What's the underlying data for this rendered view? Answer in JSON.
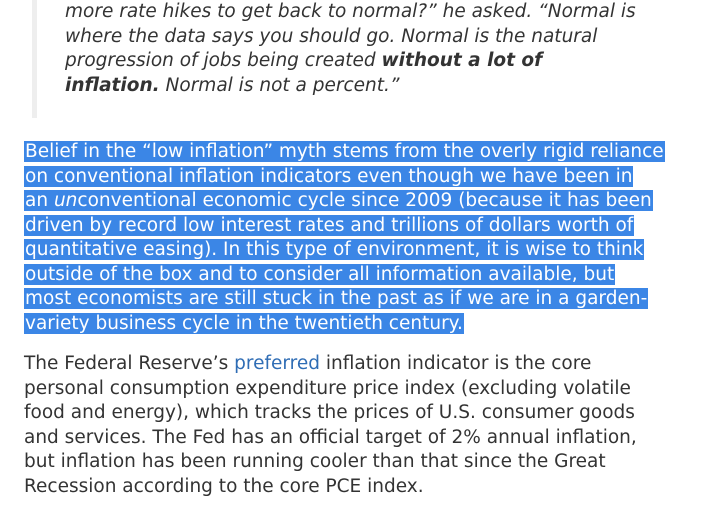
{
  "quote": {
    "line1": "more rate hikes to get back to normal?” he asked. “Normal is",
    "line2": "where the data says you should go. Normal is the natural",
    "line3_pre": "progression of jobs being created ",
    "line3_bold": "without a lot of",
    "line4_bold": "inflation.",
    "line4_post": " Normal is not a percent.”"
  },
  "selected_paragraph": {
    "lines": [
      "Belief in the “low inflation” myth stems from the overly rigid reliance",
      "on conventional inflation indicators even though we have been in",
      "conventional economic cycle since 2009 (because it has been",
      "driven by record low interest rates and trillions of dollars worth of",
      "quantitative easing). In this type of environment, it is wise to think",
      "outside of the box and to consider all information available, but",
      "most economists are still stuck in the past as if we are in a garden-",
      "variety business cycle in the twentieth century."
    ],
    "line3_prefix": "an ",
    "line3_italic": "un"
  },
  "body_paragraph": {
    "pre_link": "The Federal Reserve’s ",
    "link_text": "preferred",
    "post_link_lines": [
      " inflation indicator is the core",
      "personal consumption expenditure price index (excluding volatile",
      "food and energy), which tracks the prices of U.S. consumer goods",
      "and services. The Fed has an official target of 2% annual inflation,",
      "but inflation has been running cooler than that since the Great",
      "Recession according to the core PCE index."
    ]
  },
  "colors": {
    "selection": "#3b86e6",
    "link": "#2f6db5",
    "text": "#333333",
    "quote_border": "#eeeeee"
  }
}
